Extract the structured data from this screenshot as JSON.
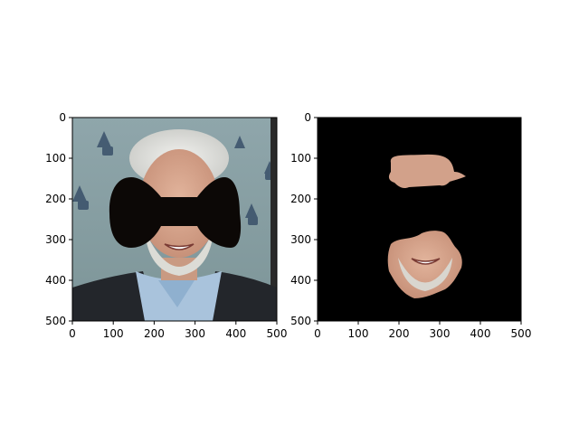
{
  "figure": {
    "panels": [
      {
        "content": "Photo of an older man with white hair and a white beard wearing a light blue shirt and dark jacket, with a black bow-tie shaped mask covering the eye region; background is a blue-grey wall with a repeated logo.",
        "x_ticks": [
          "0",
          "100",
          "200",
          "300",
          "400",
          "500"
        ],
        "y_ticks": [
          "0",
          "100",
          "200",
          "300",
          "400",
          "500"
        ]
      },
      {
        "content": "Segmented skin-only output on a black background: forehead patch and lower face (cheeks, mouth, beard) cut out; eye mask region is black.",
        "x_ticks": [
          "0",
          "100",
          "200",
          "300",
          "400",
          "500"
        ],
        "y_ticks": [
          "0",
          "100",
          "200",
          "300",
          "400",
          "500"
        ]
      }
    ]
  }
}
